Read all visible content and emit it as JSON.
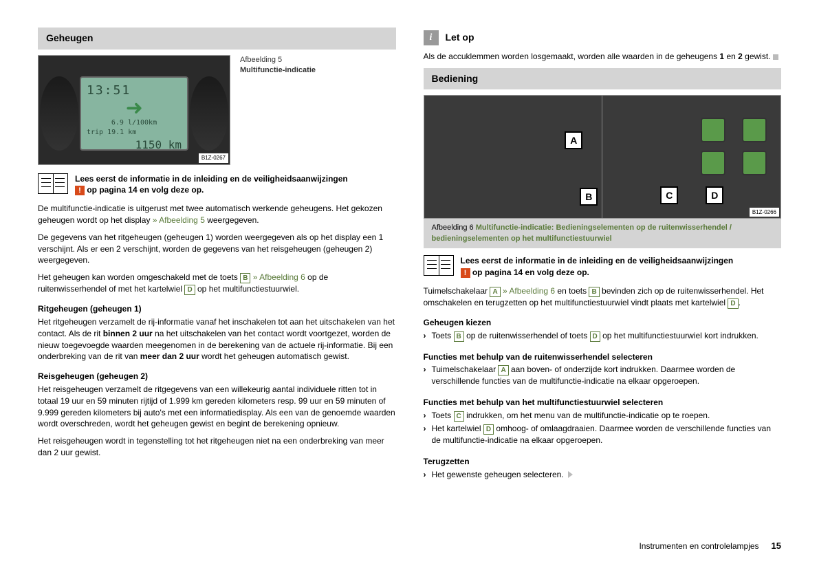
{
  "left": {
    "section_title": "Geheugen",
    "fig5": {
      "label_line1": "Afbeelding 5",
      "label_line2": "Multifunctie-indicatie",
      "ref": "B1Z-0267",
      "display": {
        "time": "13:51",
        "consumption": "6.9 l/100km",
        "trip_label": "trip",
        "trip": "19.1 km",
        "odo": "1150 km"
      }
    },
    "read_first": {
      "line1": "Lees eerst de informatie in de inleiding en de veiligheidsaanwijzingen",
      "line2a": " op pagina 14 en volg deze op."
    },
    "p1a": "De multifunctie-indicatie is uitgerust met twee automatisch werkende geheugens. Het gekozen geheugen wordt op het display ",
    "p1_link": "» Afbeelding 5",
    "p1b": " weergegeven.",
    "p2": "De gegevens van het ritgeheugen (geheugen 1) worden weergegeven als op het display een 1 verschijnt. Als er een 2 verschijnt, worden de gegevens van het reisgeheugen (geheugen 2) weergegeven.",
    "p3a": "Het geheugen kan worden omgeschakeld met de toets ",
    "p3_link": " » Afbeelding 6",
    "p3b": " op de ruitenwisserhendel of met het kartelwiel ",
    "p3c": " op het multifunctiestuurwiel.",
    "h1": "Ritgeheugen (geheugen 1)",
    "p4a": "Het ritgeheugen verzamelt de rij-informatie vanaf het inschakelen tot aan het uitschakelen van het contact. Als de rit ",
    "p4b": "binnen 2 uur",
    "p4c": " na het uitschakelen van het contact wordt voortgezet, worden de nieuw toegevoegde waarden meegenomen in de berekening van de actuele rij-informatie. Bij een onderbreking van de rit van ",
    "p4d": "meer dan 2 uur",
    "p4e": " wordt het geheugen automatisch gewist.",
    "h2": "Reisgeheugen (geheugen 2)",
    "p5": "Het reisgeheugen verzamelt de ritgegevens van een willekeurig aantal individuele ritten tot in totaal 19 uur en 59 minuten rijtijd of 1.999 km gereden kilometers resp. 99 uur en 59 minuten of 9.999 gereden kilometers bij auto's met een informatiedisplay. Als een van de genoemde waarden wordt overschreden, wordt het geheugen gewist en begint de berekening opnieuw.",
    "p6": "Het reisgeheugen wordt in tegenstelling tot het ritgeheugen niet na een onderbreking van meer dan 2 uur gewist."
  },
  "right": {
    "note_title": "Let op",
    "note_p_a": "Als de accuklemmen worden losgemaakt, worden alle waarden in de geheugens ",
    "note_p_b": "1",
    "note_p_c": " en ",
    "note_p_d": "2",
    "note_p_e": " gewist.",
    "section_title": "Bediening",
    "fig6": {
      "ref": "B1Z-0266",
      "tags": {
        "A": "A",
        "B": "B",
        "C": "C",
        "D": "D"
      },
      "caption_a": "Afbeelding 6  ",
      "caption_b": "Multifunctie-indicatie: Bedieningselementen op de ruitenwisserhendel / bedieningselementen op het multifunctiestuurwiel"
    },
    "read_first": {
      "line1": "Lees eerst de informatie in de inleiding en de veiligheidsaanwijzingen",
      "line2a": " op pagina 14 en volg deze op."
    },
    "p1a": "Tuimelschakelaar ",
    "p1_link": " » Afbeelding 6",
    "p1b": " en toets ",
    "p1c": " bevinden zich op de ruitenwisserhendel. Het omschakelen en terugzetten op het multifunctiestuurwiel vindt plaats met kartelwiel ",
    "p1d": ".",
    "h1": "Geheugen kiezen",
    "li1a": "Toets ",
    "li1b": " op de ruitenwisserhendel of toets ",
    "li1c": " op het multifunctiestuurwiel kort indrukken.",
    "h2": "Functies met behulp van de ruitenwisserhendel selecteren",
    "li2a": "Tuimelschakelaar ",
    "li2b": " aan boven- of onderzijde kort indrukken. Daarmee worden de verschillende functies van de multifunctie-indicatie na elkaar opgeroepen.",
    "h3": "Functies met behulp van het multifunctiestuurwiel selecteren",
    "li3a": "Toets ",
    "li3b": " indrukken, om het menu van de multifunctie-indicatie op te roepen.",
    "li4a": "Het kartelwiel ",
    "li4b": " omhoog- of omlaagdraaien. Daarmee worden de verschillende functies van de multifunctie-indicatie na elkaar opgeroepen.",
    "h4": "Terugzetten",
    "li5": "Het gewenste geheugen selecteren."
  },
  "footer": {
    "section": "Instrumenten en controlelampjes",
    "page": "15"
  },
  "keys": {
    "A": "A",
    "B": "B",
    "C": "C",
    "D": "D"
  }
}
